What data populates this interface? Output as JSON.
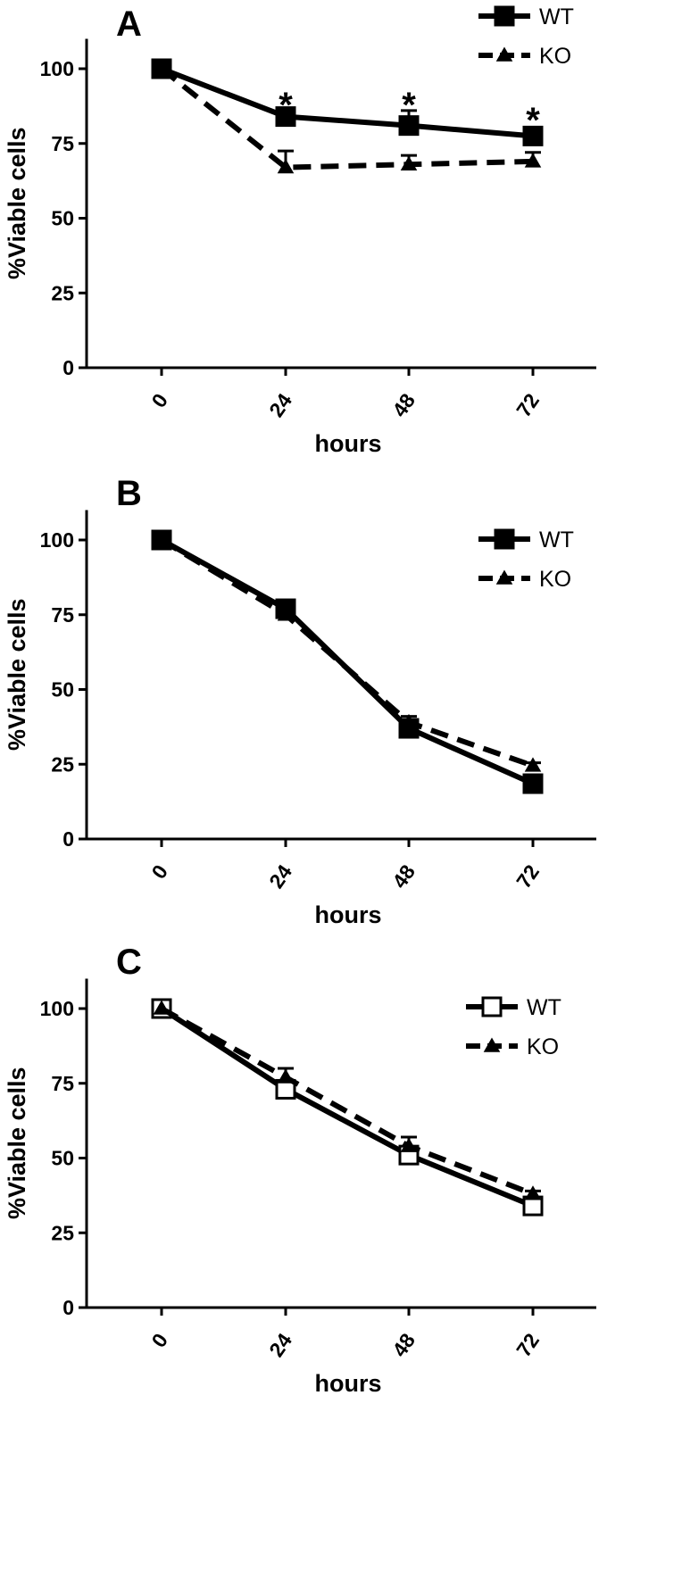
{
  "chart_data": [
    {
      "type": "line",
      "panel_label": "A",
      "xlabel": "hours",
      "ylabel": "%Viable cells",
      "categories": [
        "0",
        "24",
        "48",
        "72"
      ],
      "ylim": [
        0,
        110
      ],
      "yticks": [
        "0",
        "25",
        "50",
        "75",
        "100"
      ],
      "legend_position": "top-right",
      "series": [
        {
          "name": "WT",
          "values": [
            100,
            84,
            81,
            77.5
          ],
          "errors": [
            0,
            1,
            5,
            2
          ],
          "line_style": "solid",
          "marker": "square",
          "marker_fill": "#000000"
        },
        {
          "name": "KO",
          "values": [
            100,
            67,
            68,
            69
          ],
          "errors": [
            0,
            5.5,
            3,
            3
          ],
          "line_style": "dashed",
          "marker": "triangle",
          "marker_fill": "#000000"
        }
      ],
      "annotations": [
        {
          "text": "*",
          "x": "24",
          "y": 88
        },
        {
          "text": "*",
          "x": "48",
          "y": 88
        },
        {
          "text": "*",
          "x": "72",
          "y": 83
        }
      ]
    },
    {
      "type": "line",
      "panel_label": "B",
      "xlabel": "hours",
      "ylabel": "%Viable cells",
      "categories": [
        "0",
        "24",
        "48",
        "72"
      ],
      "ylim": [
        0,
        110
      ],
      "yticks": [
        "0",
        "25",
        "50",
        "75",
        "100"
      ],
      "legend_position": "top-right",
      "series": [
        {
          "name": "WT",
          "values": [
            100,
            77,
            37,
            18.5
          ],
          "errors": [
            0,
            1,
            1,
            1
          ],
          "line_style": "solid",
          "marker": "square",
          "marker_fill": "#000000"
        },
        {
          "name": "KO",
          "values": [
            100,
            75,
            39,
            24.5
          ],
          "errors": [
            0,
            2,
            2,
            1
          ],
          "line_style": "dashed",
          "marker": "triangle",
          "marker_fill": "#000000"
        }
      ],
      "annotations": []
    },
    {
      "type": "line",
      "panel_label": "C",
      "xlabel": "hours",
      "ylabel": "%Viable cells",
      "categories": [
        "0",
        "24",
        "48",
        "72"
      ],
      "ylim": [
        0,
        110
      ],
      "yticks": [
        "0",
        "25",
        "50",
        "75",
        "100"
      ],
      "legend_position": "top-right",
      "series": [
        {
          "name": "WT",
          "values": [
            100,
            73,
            51,
            34
          ],
          "errors": [
            0,
            1,
            1,
            1
          ],
          "line_style": "solid",
          "marker": "square",
          "marker_fill": "#ffffff"
        },
        {
          "name": "KO",
          "values": [
            100,
            77,
            54,
            38
          ],
          "errors": [
            0,
            3,
            3,
            1
          ],
          "line_style": "dashed",
          "marker": "triangle",
          "marker_fill": "#000000"
        }
      ],
      "annotations": []
    }
  ]
}
